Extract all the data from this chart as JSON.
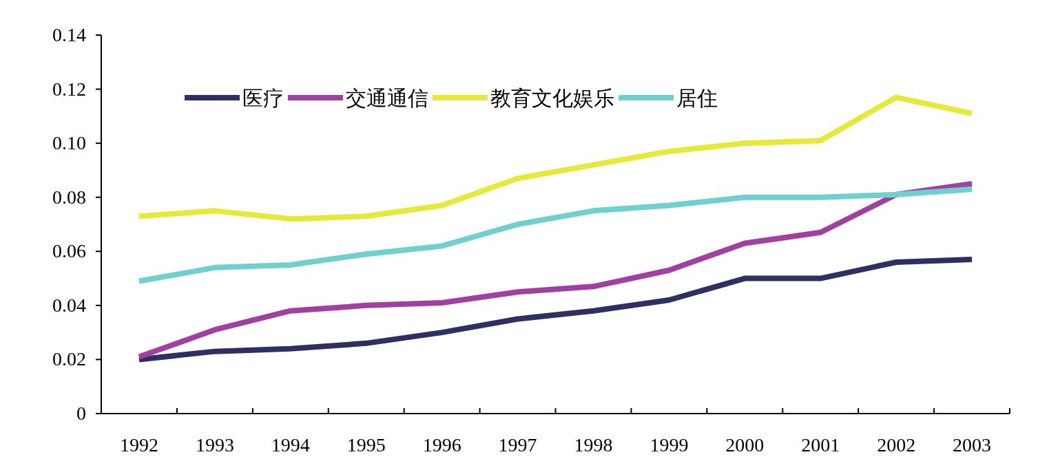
{
  "chart_data": {
    "type": "line",
    "categories": [
      "1992",
      "1993",
      "1994",
      "1995",
      "1996",
      "1997",
      "1998",
      "1999",
      "2000",
      "2001",
      "2002",
      "2003"
    ],
    "series": [
      {
        "name": "医疗",
        "color": "#2e3061",
        "values": [
          0.02,
          0.023,
          0.024,
          0.026,
          0.03,
          0.035,
          0.038,
          0.042,
          0.05,
          0.05,
          0.056,
          0.057
        ]
      },
      {
        "name": "交通通信",
        "color": "#a040a0",
        "values": [
          0.021,
          0.031,
          0.038,
          0.04,
          0.041,
          0.045,
          0.047,
          0.053,
          0.063,
          0.067,
          0.081,
          0.085
        ]
      },
      {
        "name": "教育文化娱乐",
        "color": "#e5ea38",
        "values": [
          0.073,
          0.075,
          0.072,
          0.073,
          0.077,
          0.087,
          0.092,
          0.097,
          0.1,
          0.101,
          0.117,
          0.111
        ]
      },
      {
        "name": "居住",
        "color": "#70d0d0",
        "values": [
          0.049,
          0.054,
          0.055,
          0.059,
          0.062,
          0.07,
          0.075,
          0.077,
          0.08,
          0.08,
          0.081,
          0.083
        ]
      }
    ],
    "ylim": [
      0,
      0.14
    ],
    "yticks": [
      0,
      {
        "value": 0.02,
        "label": "0.02"
      },
      {
        "value": 0.04,
        "label": "0.04"
      },
      {
        "value": 0.06,
        "label": "0.06"
      },
      {
        "value": 0.08,
        "label": "0.08"
      },
      {
        "value": 0.1,
        "label": "0.10"
      },
      {
        "value": 0.12,
        "label": "0.12"
      },
      {
        "value": 0.14,
        "label": "0.14"
      }
    ],
    "grid": false,
    "legend": "top",
    "marker": "none",
    "line_style": "solid"
  }
}
